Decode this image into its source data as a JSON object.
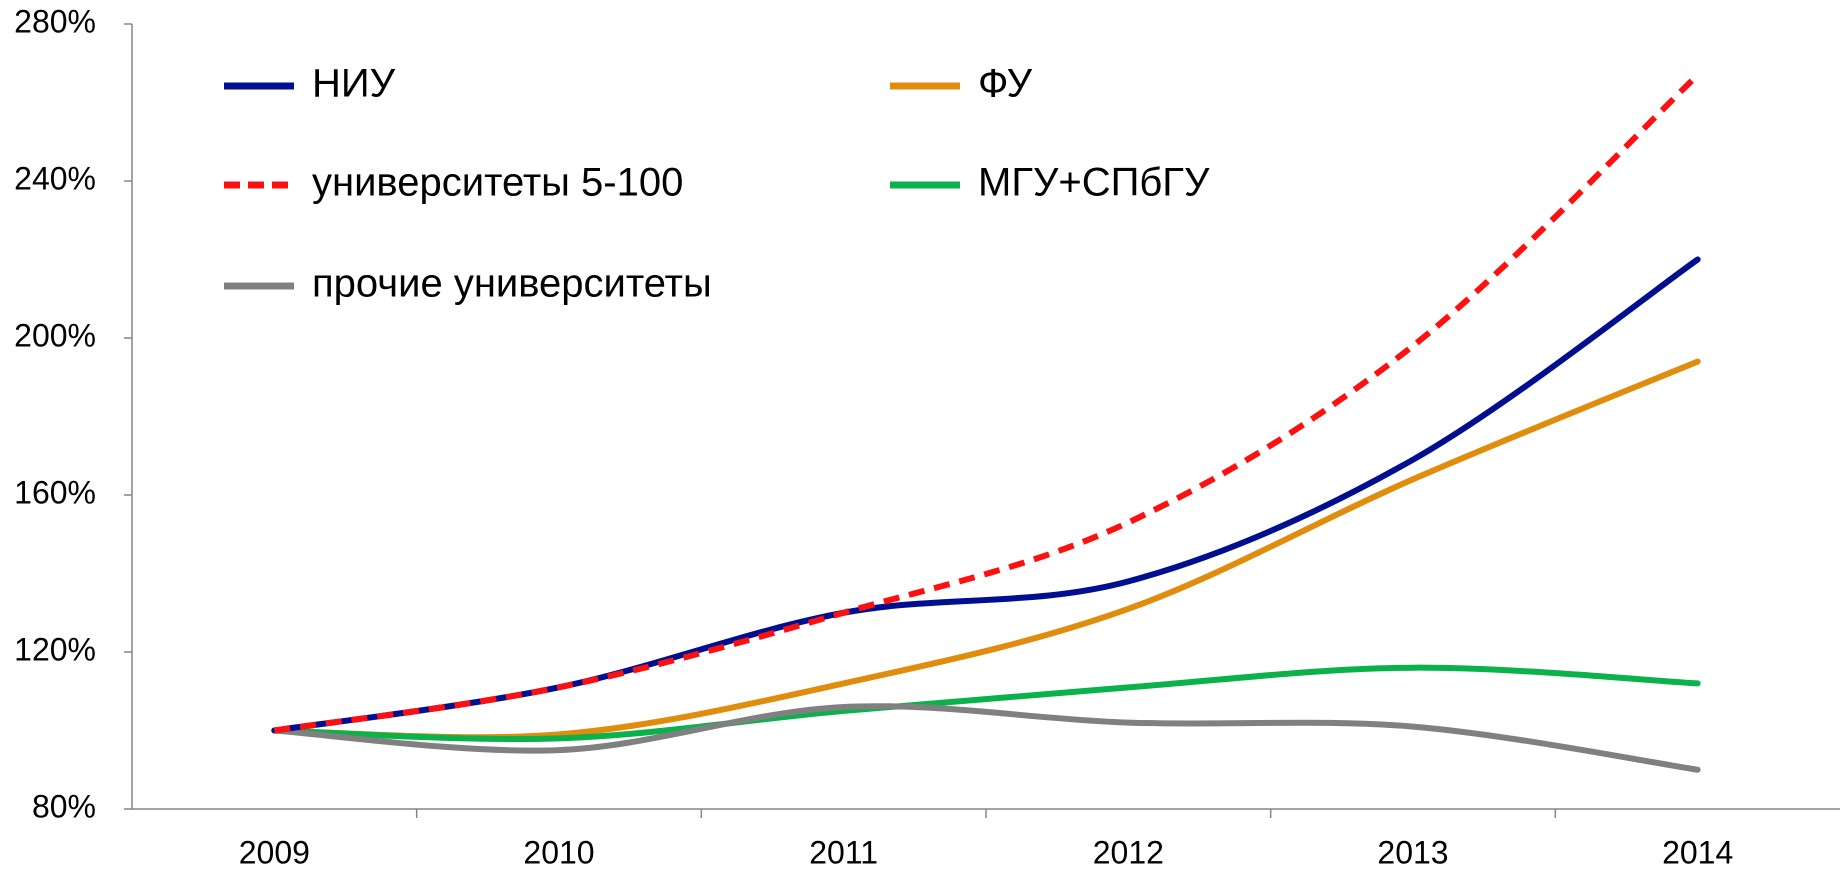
{
  "chart_data": {
    "type": "line",
    "categories": [
      "2009",
      "2010",
      "2011",
      "2012",
      "2013",
      "2014"
    ],
    "series": [
      {
        "name": "НИУ",
        "color": "#000f8f",
        "values": [
          100,
          111,
          130,
          138,
          169,
          220
        ]
      },
      {
        "name": "ФУ",
        "color": "#e08c0c",
        "values": [
          100,
          99,
          112,
          131,
          164,
          194
        ]
      },
      {
        "name": "университеты 5-100",
        "color": "#ff1010",
        "dashed": true,
        "values": [
          100,
          111,
          130,
          153,
          198,
          267
        ]
      },
      {
        "name": "МГУ+СПбГУ",
        "color": "#0bb14b",
        "values": [
          100,
          98,
          105,
          111,
          116,
          112
        ]
      },
      {
        "name": "прочие университеты",
        "color": "#808080",
        "values": [
          100,
          95,
          106,
          102,
          101,
          90
        ]
      }
    ],
    "ylim": [
      80,
      280
    ],
    "yticks": [
      {
        "value": 80,
        "label": "80%"
      },
      {
        "value": 120,
        "label": "120%"
      },
      {
        "value": 160,
        "label": "160%"
      },
      {
        "value": 200,
        "label": "200%"
      },
      {
        "value": 240,
        "label": "240%"
      },
      {
        "value": 280,
        "label": "280%"
      }
    ],
    "grid": false
  }
}
